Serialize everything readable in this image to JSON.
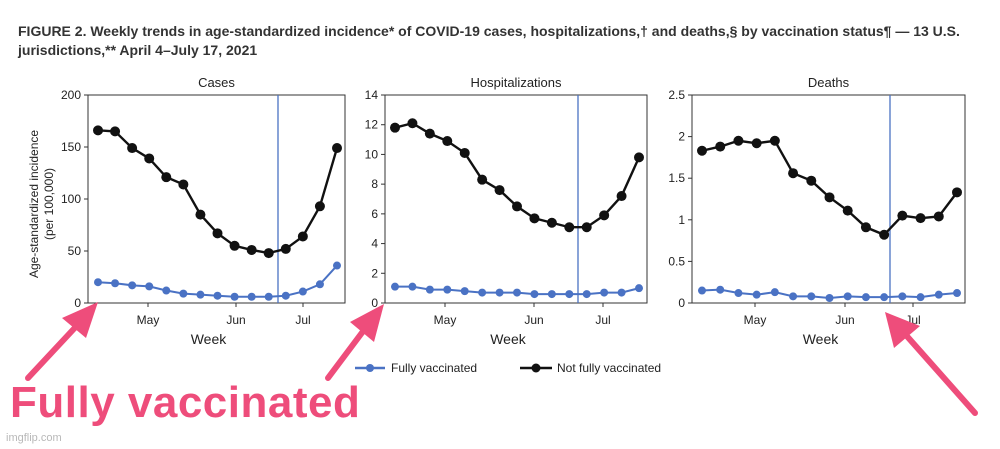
{
  "figure": {
    "title_line1": "FIGURE 2. Weekly trends in age-standardized incidence* of COVID-19 cases, hospitalizations,† and deaths,§ by vaccination status¶ — 13 U.S.",
    "title_line2": "jurisdictions,** April 4–July 17, 2021"
  },
  "annotation": {
    "text": "Fully vaccinated",
    "color": "#ee4d7b"
  },
  "watermark": "imgflip.com",
  "legend": {
    "items": [
      {
        "label": "Fully vaccinated",
        "color": "#4a72c4"
      },
      {
        "label": "Not fully vaccinated",
        "color": "#111111"
      }
    ]
  },
  "chart_data": [
    {
      "type": "line",
      "title": "Cases",
      "xlabel": "Week",
      "ylabel": "Age-standardized incidence (per 100,000)",
      "ylim": [
        0,
        200
      ],
      "yticks": [
        0,
        50,
        100,
        150,
        200
      ],
      "yticklabels": [
        "0",
        "50",
        "100",
        "150",
        "200"
      ],
      "xticklabels": [
        "May",
        "Jun",
        "Jul"
      ],
      "reference_line": "vertical",
      "series": [
        {
          "name": "Not fully vaccinated",
          "color": "#111111",
          "values": [
            166,
            165,
            149,
            139,
            121,
            114,
            85,
            67,
            55,
            51,
            48,
            52,
            64,
            93,
            149
          ]
        },
        {
          "name": "Fully vaccinated",
          "color": "#4a72c4",
          "values": [
            20,
            19,
            17,
            16,
            12,
            9,
            8,
            7,
            6,
            6,
            6,
            7,
            11,
            18,
            36
          ]
        }
      ]
    },
    {
      "type": "line",
      "title": "Hospitalizations",
      "xlabel": "Week",
      "ylabel": "",
      "ylim": [
        0,
        14
      ],
      "yticks": [
        0,
        2,
        4,
        6,
        8,
        10,
        12,
        14
      ],
      "yticklabels": [
        "0",
        "2",
        "4",
        "6",
        "8",
        "10",
        "12",
        "14"
      ],
      "xticklabels": [
        "May",
        "Jun",
        "Jul"
      ],
      "reference_line": "vertical",
      "series": [
        {
          "name": "Not fully vaccinated",
          "color": "#111111",
          "values": [
            11.8,
            12.1,
            11.4,
            10.9,
            10.1,
            8.3,
            7.6,
            6.5,
            5.7,
            5.4,
            5.1,
            5.1,
            5.9,
            7.2,
            9.8
          ]
        },
        {
          "name": "Fully vaccinated",
          "color": "#4a72c4",
          "values": [
            1.1,
            1.1,
            0.9,
            0.9,
            0.8,
            0.7,
            0.7,
            0.7,
            0.6,
            0.6,
            0.6,
            0.6,
            0.7,
            0.7,
            1.0
          ]
        }
      ]
    },
    {
      "type": "line",
      "title": "Deaths",
      "xlabel": "Week",
      "ylabel": "",
      "ylim": [
        0,
        2.5
      ],
      "yticks": [
        0,
        0.5,
        1,
        1.5,
        2,
        2.5
      ],
      "yticklabels": [
        "0",
        "0.5",
        "1",
        "1.5",
        "2",
        "2.5"
      ],
      "xticklabels": [
        "May",
        "Jun",
        "Jul"
      ],
      "reference_line": "vertical",
      "series": [
        {
          "name": "Not fully vaccinated",
          "color": "#111111",
          "values": [
            1.83,
            1.88,
            1.95,
            1.92,
            1.95,
            1.56,
            1.47,
            1.27,
            1.11,
            0.91,
            0.82,
            1.05,
            1.02,
            1.04,
            1.33
          ]
        },
        {
          "name": "Fully vaccinated",
          "color": "#4a72c4",
          "values": [
            0.15,
            0.16,
            0.12,
            0.1,
            0.13,
            0.08,
            0.08,
            0.06,
            0.08,
            0.07,
            0.07,
            0.08,
            0.07,
            0.1,
            0.12
          ]
        }
      ]
    }
  ]
}
